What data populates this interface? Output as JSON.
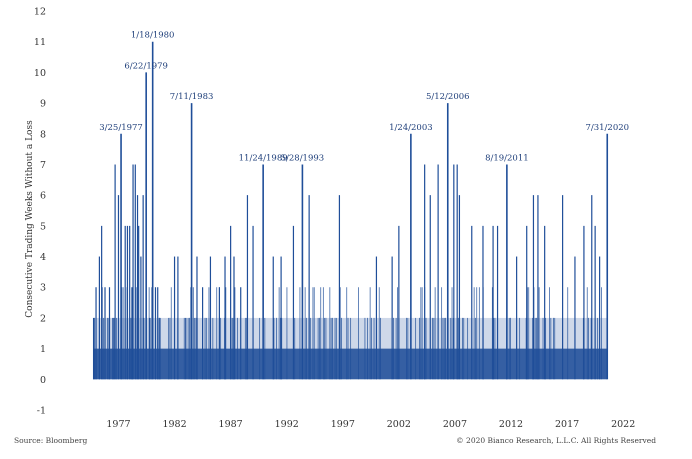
{
  "chart_data": {
    "type": "bar",
    "ylabel": "Consecutive Trading Weeks Without a Loss",
    "ylim": [
      -1,
      12
    ],
    "yticks": [
      -1,
      0,
      1,
      2,
      3,
      4,
      5,
      6,
      7,
      8,
      9,
      10,
      11,
      12
    ],
    "xlim": [
      1972.5,
      2023.5
    ],
    "xticks": [
      1977,
      1982,
      1987,
      1992,
      1997,
      2002,
      2007,
      2012,
      2017,
      2022
    ],
    "grid": false,
    "bar_color": "#1f4e99",
    "annotations": [
      {
        "label": "3/25/1977",
        "x": 1977.23,
        "value": 8
      },
      {
        "label": "6/22/1979",
        "x": 1979.47,
        "value": 10
      },
      {
        "label": "1/18/1980",
        "x": 1980.05,
        "value": 11
      },
      {
        "label": "7/11/1983",
        "x": 1983.52,
        "value": 9
      },
      {
        "label": "11/24/1989",
        "x": 1989.9,
        "value": 7
      },
      {
        "label": "5/28/1993",
        "x": 1993.4,
        "value": 7
      },
      {
        "label": "1/24/2003",
        "x": 2003.07,
        "value": 8
      },
      {
        "label": "5/12/2006",
        "x": 2006.36,
        "value": 9
      },
      {
        "label": "8/19/2011",
        "x": 2011.63,
        "value": 7
      },
      {
        "label": "7/31/2020",
        "x": 2020.58,
        "value": 8
      }
    ],
    "series": [
      {
        "x": [
          1974.78,
          1975.0,
          1975.3,
          1975.5,
          1975.8,
          1976.2,
          1976.5,
          1976.7,
          1977.0,
          1977.6,
          1977.8,
          1978.0,
          1978.2,
          1978.3,
          1978.5,
          1978.7,
          1978.8,
          1979.0,
          1979.2,
          1979.8,
          1980.3,
          1980.5,
          1980.7,
          1982.0,
          1982.3,
          1983.0,
          1984.0,
          1984.5,
          1985.2,
          1986.0,
          1986.5,
          1987.0,
          1987.3,
          1987.9,
          1988.5,
          1989.0,
          1990.8,
          1991.5,
          1992.6,
          1994.0,
          1996.7,
          2000.0,
          2001.4,
          2002.0,
          2004.3,
          2004.8,
          2005.5,
          2006.9,
          2007.2,
          2007.4,
          2008.5,
          2009.5,
          2010.4,
          2010.8,
          2012.5,
          2013.4,
          2014.0,
          2014.4,
          2015.0,
          2016.6,
          2017.7,
          2018.5,
          2019.2,
          2019.5,
          2019.9
        ],
        "values": [
          2,
          3,
          4,
          5,
          3,
          3,
          2,
          7,
          6,
          5,
          5,
          5,
          3,
          7,
          7,
          6,
          5,
          4,
          6,
          2,
          3,
          3,
          2,
          4,
          4,
          2,
          4,
          3,
          4,
          3,
          4,
          5,
          4,
          3,
          6,
          5,
          4,
          4,
          5,
          6,
          6,
          4,
          4,
          5,
          7,
          6,
          7,
          7,
          7,
          6,
          5,
          5,
          5,
          5,
          4,
          5,
          6,
          6,
          5,
          6,
          4,
          5,
          6,
          5,
          4
        ]
      }
    ]
  },
  "source_text": "Source: Bloomberg",
  "copyright_text": "© 2020 Bianco Research, L.L.C. All Rights Reserved"
}
